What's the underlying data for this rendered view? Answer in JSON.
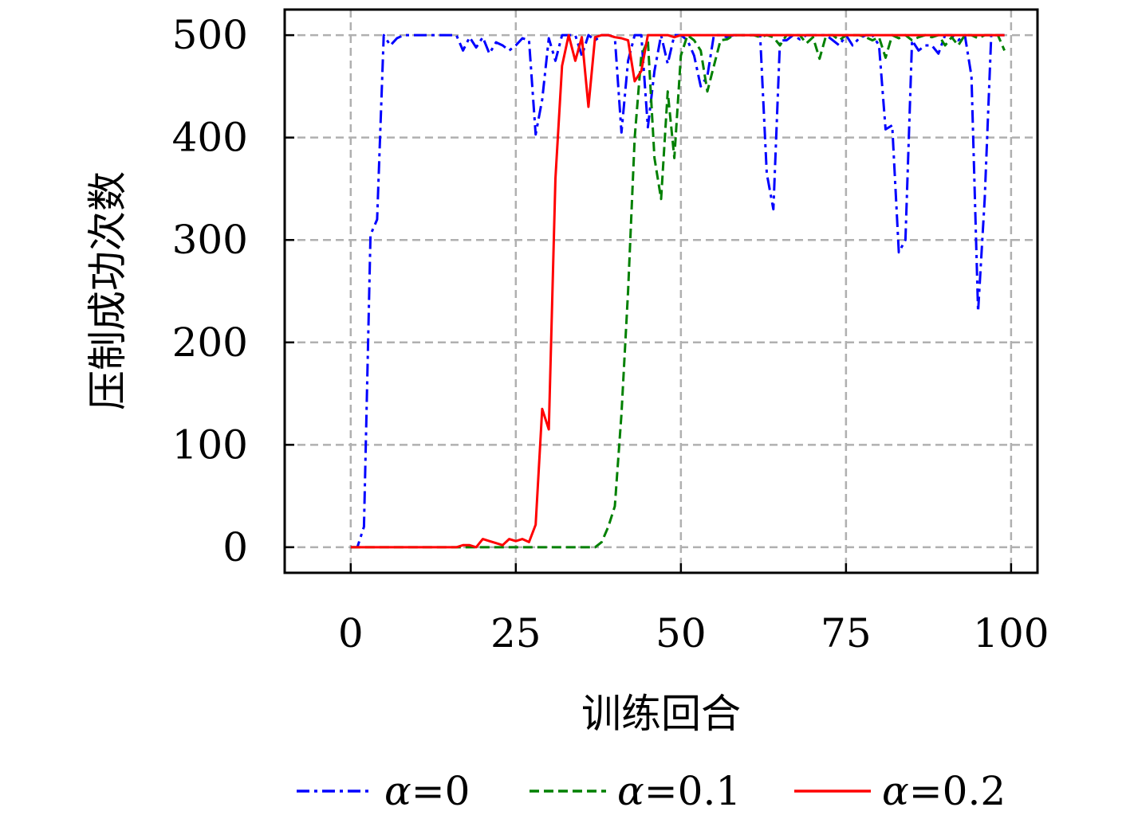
{
  "chart_data": {
    "type": "line",
    "xlabel": "训练回合",
    "ylabel": "压制成功次数",
    "xlim": [
      -10,
      104
    ],
    "ylim": [
      -25,
      525
    ],
    "xticks": [
      0,
      25,
      50,
      75,
      100
    ],
    "yticks": [
      0,
      100,
      200,
      300,
      400,
      500
    ],
    "xtick_labels": [
      "0",
      "25",
      "50",
      "75",
      "100"
    ],
    "ytick_labels": [
      "0",
      "100",
      "200",
      "300",
      "400",
      "500"
    ],
    "grid": true,
    "legend_placement": "bottom",
    "series": [
      {
        "name": "α=0",
        "legend_symbol": "α",
        "legend_value": "=0",
        "color": "#0000ff",
        "style": "dashdot",
        "x": [
          0,
          1,
          2,
          3,
          4,
          5,
          6,
          7,
          8,
          9,
          10,
          11,
          12,
          13,
          14,
          15,
          16,
          17,
          18,
          19,
          20,
          21,
          22,
          23,
          24,
          25,
          26,
          27,
          28,
          29,
          30,
          31,
          32,
          33,
          34,
          35,
          36,
          37,
          38,
          39,
          40,
          41,
          42,
          43,
          44,
          45,
          46,
          47,
          48,
          49,
          50,
          51,
          52,
          53,
          54,
          55,
          56,
          57,
          58,
          59,
          60,
          61,
          62,
          63,
          64,
          65,
          66,
          67,
          68,
          69,
          70,
          71,
          72,
          73,
          74,
          75,
          76,
          77,
          78,
          79,
          80,
          81,
          82,
          83,
          84,
          85,
          86,
          87,
          88,
          89,
          90,
          91,
          92,
          93,
          94,
          95,
          96,
          97,
          98,
          99
        ],
        "y": [
          0,
          0,
          20,
          305,
          320,
          500,
          490,
          497,
          500,
          500,
          500,
          500,
          500,
          500,
          500,
          500,
          500,
          485,
          498,
          488,
          498,
          482,
          493,
          490,
          485,
          490,
          497,
          495,
          403,
          437,
          497,
          475,
          500,
          500,
          500,
          480,
          500,
          495,
          500,
          500,
          498,
          405,
          475,
          500,
          500,
          410,
          465,
          500,
          472,
          500,
          500,
          495,
          480,
          450,
          460,
          500,
          500,
          498,
          500,
          500,
          500,
          500,
          500,
          365,
          330,
          495,
          495,
          500,
          496,
          500,
          500,
          500,
          500,
          495,
          490,
          500,
          490,
          497,
          500,
          500,
          490,
          408,
          412,
          288,
          300,
          495,
          485,
          490,
          490,
          482,
          500,
          500,
          495,
          500,
          460,
          230,
          340,
          500,
          500,
          500
        ]
      },
      {
        "name": "α=0.1",
        "legend_symbol": "α",
        "legend_value": "=0.1",
        "color": "#008000",
        "style": "dashed",
        "x": [
          0,
          1,
          2,
          3,
          4,
          5,
          6,
          7,
          8,
          9,
          10,
          11,
          12,
          13,
          14,
          15,
          16,
          17,
          18,
          19,
          20,
          21,
          22,
          23,
          24,
          25,
          26,
          27,
          28,
          29,
          30,
          31,
          32,
          33,
          34,
          35,
          36,
          37,
          38,
          39,
          40,
          41,
          42,
          43,
          44,
          45,
          46,
          47,
          48,
          49,
          50,
          51,
          52,
          53,
          54,
          55,
          56,
          57,
          58,
          59,
          60,
          61,
          62,
          63,
          64,
          65,
          66,
          67,
          68,
          69,
          70,
          71,
          72,
          73,
          74,
          75,
          76,
          77,
          78,
          79,
          80,
          81,
          82,
          83,
          84,
          85,
          86,
          87,
          88,
          89,
          90,
          91,
          92,
          93,
          94,
          95,
          96,
          97,
          98,
          99
        ],
        "y": [
          0,
          0,
          0,
          0,
          0,
          0,
          0,
          0,
          0,
          0,
          0,
          0,
          0,
          0,
          0,
          0,
          0,
          0,
          0,
          0,
          0,
          0,
          0,
          0,
          0,
          0,
          0,
          0,
          0,
          0,
          0,
          0,
          0,
          0,
          0,
          0,
          0,
          0,
          5,
          20,
          40,
          130,
          250,
          400,
          480,
          495,
          380,
          340,
          445,
          380,
          480,
          500,
          495,
          485,
          445,
          470,
          495,
          496,
          500,
          500,
          500,
          500,
          498,
          500,
          498,
          490,
          500,
          500,
          500,
          492,
          498,
          477,
          500,
          500,
          495,
          500,
          500,
          500,
          498,
          495,
          498,
          478,
          500,
          497,
          500,
          495,
          498,
          500,
          498,
          500,
          490,
          498,
          490,
          500,
          500,
          497,
          500,
          500,
          500,
          485
        ]
      },
      {
        "name": "α=0.2",
        "legend_symbol": "α",
        "legend_value": "=0.2",
        "color": "#ff0000",
        "style": "solid",
        "x": [
          0,
          1,
          2,
          3,
          4,
          5,
          6,
          7,
          8,
          9,
          10,
          11,
          12,
          13,
          14,
          15,
          16,
          17,
          18,
          19,
          20,
          21,
          22,
          23,
          24,
          25,
          26,
          27,
          28,
          29,
          30,
          31,
          32,
          33,
          34,
          35,
          36,
          37,
          38,
          39,
          40,
          41,
          42,
          43,
          44,
          45,
          46,
          47,
          48,
          49,
          50,
          51,
          52,
          53,
          54,
          55,
          56,
          57,
          58,
          59,
          60,
          61,
          62,
          63,
          64,
          65,
          66,
          67,
          68,
          69,
          70,
          71,
          72,
          73,
          74,
          75,
          76,
          77,
          78,
          79,
          80,
          81,
          82,
          83,
          84,
          85,
          86,
          87,
          88,
          89,
          90,
          91,
          92,
          93,
          94,
          95,
          96,
          97,
          98,
          99
        ],
        "y": [
          0,
          0,
          0,
          0,
          0,
          0,
          0,
          0,
          0,
          0,
          0,
          0,
          0,
          0,
          0,
          0,
          0,
          2,
          2,
          0,
          8,
          6,
          4,
          2,
          8,
          6,
          8,
          5,
          22,
          135,
          115,
          360,
          470,
          500,
          475,
          498,
          430,
          498,
          500,
          500,
          498,
          497,
          495,
          455,
          465,
          500,
          500,
          500,
          500,
          498,
          500,
          500,
          500,
          500,
          500,
          500,
          500,
          500,
          500,
          500,
          500,
          500,
          500,
          500,
          500,
          500,
          500,
          500,
          500,
          500,
          500,
          500,
          500,
          500,
          500,
          500,
          500,
          500,
          500,
          500,
          500,
          500,
          500,
          500,
          500,
          500,
          500,
          500,
          500,
          500,
          500,
          500,
          500,
          500,
          500,
          500,
          500,
          500,
          500,
          500
        ]
      }
    ]
  }
}
